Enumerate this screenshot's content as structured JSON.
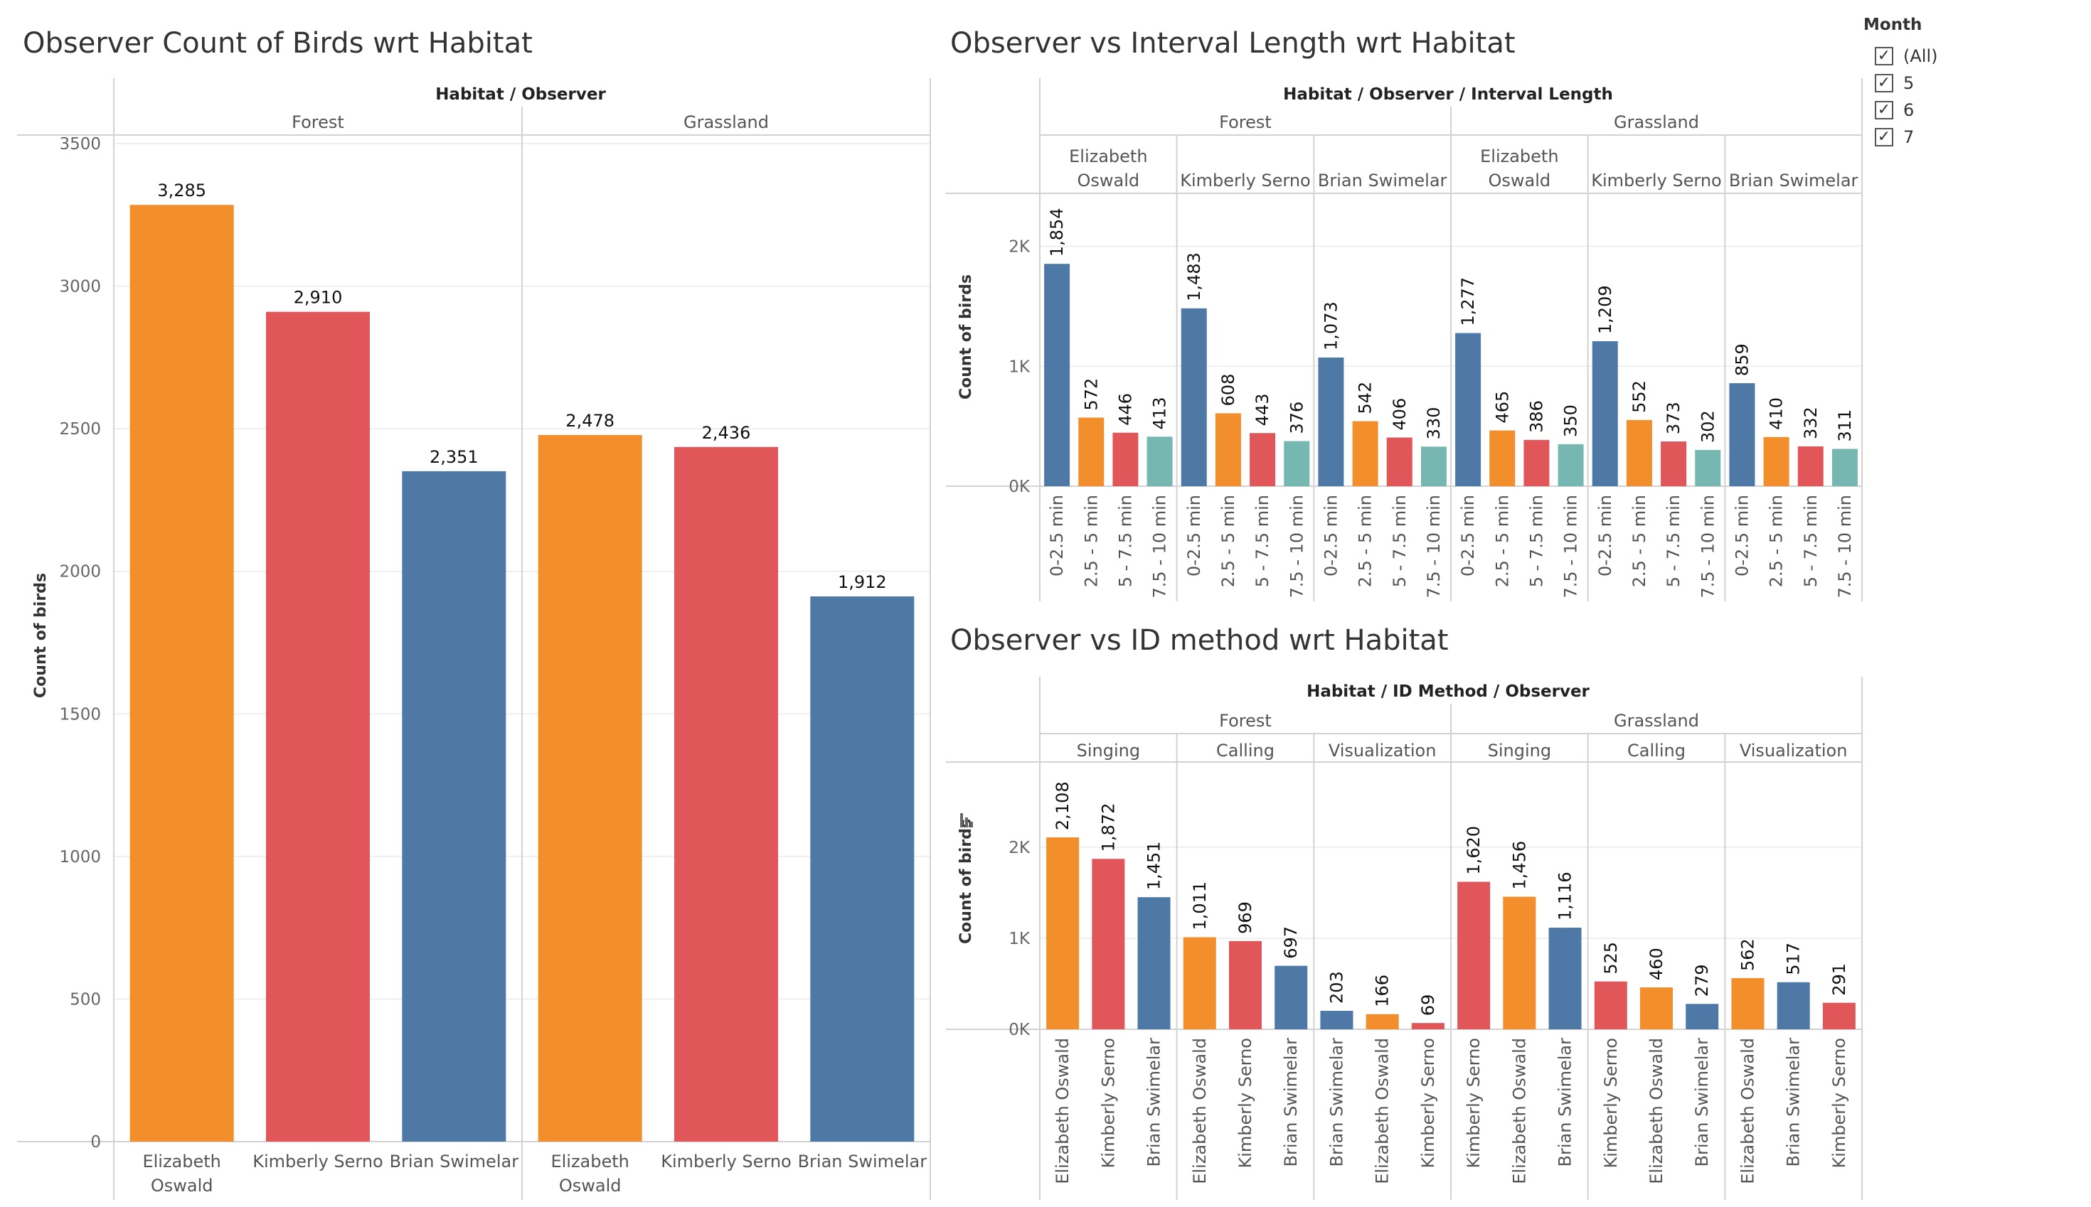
{
  "colors": {
    "orange": "#F28E2B",
    "red": "#E15759",
    "blue": "#4E79A7",
    "teal": "#76B7B2"
  },
  "filter": {
    "title": "Month",
    "items": [
      {
        "label": "(All)",
        "checked": true
      },
      {
        "label": "5",
        "checked": true
      },
      {
        "label": "6",
        "checked": true
      },
      {
        "label": "7",
        "checked": true
      }
    ]
  },
  "chart_data": [
    {
      "id": "c1",
      "type": "bar",
      "title": "Observer Count of Birds wrt Habitat",
      "header": "Habitat / Observer",
      "ylabel": "Count of birds",
      "ylim": [
        0,
        3500
      ],
      "yticks": [
        "0",
        "500",
        "1000",
        "1500",
        "2000",
        "2500",
        "3000",
        "3500"
      ],
      "groups": [
        {
          "name": "Forest",
          "bars": [
            {
              "category": "Elizabeth Oswald",
              "value": 3285,
              "label": "3,285",
              "color": "orange"
            },
            {
              "category": "Kimberly Serno",
              "value": 2910,
              "label": "2,910",
              "color": "red"
            },
            {
              "category": "Brian Swimelar",
              "value": 2351,
              "label": "2,351",
              "color": "blue"
            }
          ]
        },
        {
          "name": "Grassland",
          "bars": [
            {
              "category": "Elizabeth Oswald",
              "value": 2478,
              "label": "2,478",
              "color": "orange"
            },
            {
              "category": "Kimberly Serno",
              "value": 2436,
              "label": "2,436",
              "color": "red"
            },
            {
              "category": "Brian Swimelar",
              "value": 1912,
              "label": "1,912",
              "color": "blue"
            }
          ]
        }
      ]
    },
    {
      "id": "c2",
      "type": "bar",
      "title": "Observer vs Interval Length wrt Habitat",
      "header": "Habitat / Observer / Interval Length",
      "ylabel": "Count of birds",
      "ylim": [
        0,
        2430
      ],
      "yticks": [
        "0K",
        "1K",
        "2K"
      ],
      "groups": [
        {
          "name": "Forest",
          "subgroups": [
            {
              "name": "Elizabeth Oswald",
              "bars": [
                {
                  "category": "0-2.5 min",
                  "value": 1854,
                  "label": "1,854",
                  "color": "blue"
                },
                {
                  "category": "2.5 - 5 min",
                  "value": 572,
                  "label": "572",
                  "color": "orange"
                },
                {
                  "category": "5 - 7.5 min",
                  "value": 446,
                  "label": "446",
                  "color": "red"
                },
                {
                  "category": "7.5 - 10 min",
                  "value": 413,
                  "label": "413",
                  "color": "teal"
                }
              ]
            },
            {
              "name": "Kimberly Serno",
              "bars": [
                {
                  "category": "0-2.5 min",
                  "value": 1483,
                  "label": "1,483",
                  "color": "blue"
                },
                {
                  "category": "2.5 - 5 min",
                  "value": 608,
                  "label": "608",
                  "color": "orange"
                },
                {
                  "category": "5 - 7.5 min",
                  "value": 443,
                  "label": "443",
                  "color": "red"
                },
                {
                  "category": "7.5 - 10 min",
                  "value": 376,
                  "label": "376",
                  "color": "teal"
                }
              ]
            },
            {
              "name": "Brian Swimelar",
              "bars": [
                {
                  "category": "0-2.5 min",
                  "value": 1073,
                  "label": "1,073",
                  "color": "blue"
                },
                {
                  "category": "2.5 - 5 min",
                  "value": 542,
                  "label": "542",
                  "color": "orange"
                },
                {
                  "category": "5 - 7.5 min",
                  "value": 406,
                  "label": "406",
                  "color": "red"
                },
                {
                  "category": "7.5 - 10 min",
                  "value": 330,
                  "label": "330",
                  "color": "teal"
                }
              ]
            }
          ]
        },
        {
          "name": "Grassland",
          "subgroups": [
            {
              "name": "Elizabeth Oswald",
              "bars": [
                {
                  "category": "0-2.5 min",
                  "value": 1277,
                  "label": "1,277",
                  "color": "blue"
                },
                {
                  "category": "2.5 - 5 min",
                  "value": 465,
                  "label": "465",
                  "color": "orange"
                },
                {
                  "category": "5 - 7.5 min",
                  "value": 386,
                  "label": "386",
                  "color": "red"
                },
                {
                  "category": "7.5 - 10 min",
                  "value": 350,
                  "label": "350",
                  "color": "teal"
                }
              ]
            },
            {
              "name": "Kimberly Serno",
              "bars": [
                {
                  "category": "0-2.5 min",
                  "value": 1209,
                  "label": "1,209",
                  "color": "blue"
                },
                {
                  "category": "2.5 - 5 min",
                  "value": 552,
                  "label": "552",
                  "color": "orange"
                },
                {
                  "category": "5 - 7.5 min",
                  "value": 373,
                  "label": "373",
                  "color": "red"
                },
                {
                  "category": "7.5 - 10 min",
                  "value": 302,
                  "label": "302",
                  "color": "teal"
                }
              ]
            },
            {
              "name": "Brian Swimelar",
              "bars": [
                {
                  "category": "0-2.5 min",
                  "value": 859,
                  "label": "859",
                  "color": "blue"
                },
                {
                  "category": "2.5 - 5 min",
                  "value": 410,
                  "label": "410",
                  "color": "orange"
                },
                {
                  "category": "5 - 7.5 min",
                  "value": 332,
                  "label": "332",
                  "color": "red"
                },
                {
                  "category": "7.5 - 10 min",
                  "value": 311,
                  "label": "311",
                  "color": "teal"
                }
              ]
            }
          ]
        }
      ]
    },
    {
      "id": "c3",
      "type": "bar",
      "title": "Observer vs ID method wrt Habitat",
      "header": "Habitat / ID Method / Observer",
      "ylabel": "Count of birds",
      "ylim": [
        0,
        2920
      ],
      "yticks": [
        "0K",
        "1K",
        "2K"
      ],
      "groups": [
        {
          "name": "Forest",
          "subgroups": [
            {
              "name": "Singing",
              "bars": [
                {
                  "category": "Elizabeth Oswald",
                  "value": 2108,
                  "label": "2,108",
                  "color": "orange"
                },
                {
                  "category": "Kimberly Serno",
                  "value": 1872,
                  "label": "1,872",
                  "color": "red"
                },
                {
                  "category": "Brian Swimelar",
                  "value": 1451,
                  "label": "1,451",
                  "color": "blue"
                }
              ]
            },
            {
              "name": "Calling",
              "bars": [
                {
                  "category": "Elizabeth Oswald",
                  "value": 1011,
                  "label": "1,011",
                  "color": "orange"
                },
                {
                  "category": "Kimberly Serno",
                  "value": 969,
                  "label": "969",
                  "color": "red"
                },
                {
                  "category": "Brian Swimelar",
                  "value": 697,
                  "label": "697",
                  "color": "blue"
                }
              ]
            },
            {
              "name": "Visualization",
              "bars": [
                {
                  "category": "Brian Swimelar",
                  "value": 203,
                  "label": "203",
                  "color": "blue"
                },
                {
                  "category": "Elizabeth Oswald",
                  "value": 166,
                  "label": "166",
                  "color": "orange"
                },
                {
                  "category": "Kimberly Serno",
                  "value": 69,
                  "label": "69",
                  "color": "red"
                }
              ]
            }
          ]
        },
        {
          "name": "Grassland",
          "subgroups": [
            {
              "name": "Singing",
              "bars": [
                {
                  "category": "Kimberly Serno",
                  "value": 1620,
                  "label": "1,620",
                  "color": "red"
                },
                {
                  "category": "Elizabeth Oswald",
                  "value": 1456,
                  "label": "1,456",
                  "color": "orange"
                },
                {
                  "category": "Brian Swimelar",
                  "value": 1116,
                  "label": "1,116",
                  "color": "blue"
                }
              ]
            },
            {
              "name": "Calling",
              "bars": [
                {
                  "category": "Kimberly Serno",
                  "value": 525,
                  "label": "525",
                  "color": "red"
                },
                {
                  "category": "Elizabeth Oswald",
                  "value": 460,
                  "label": "460",
                  "color": "orange"
                },
                {
                  "category": "Brian Swimelar",
                  "value": 279,
                  "label": "279",
                  "color": "blue"
                }
              ]
            },
            {
              "name": "Visualization",
              "bars": [
                {
                  "category": "Elizabeth Oswald",
                  "value": 562,
                  "label": "562",
                  "color": "orange"
                },
                {
                  "category": "Brian Swimelar",
                  "value": 517,
                  "label": "517",
                  "color": "blue"
                },
                {
                  "category": "Kimberly Serno",
                  "value": 291,
                  "label": "291",
                  "color": "red"
                }
              ]
            }
          ]
        }
      ]
    }
  ]
}
